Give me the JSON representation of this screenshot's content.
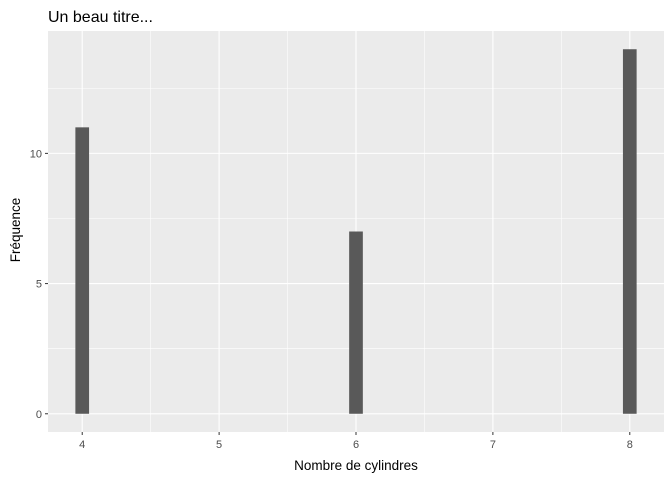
{
  "chart_data": {
    "type": "bar",
    "title": "Un beau titre...",
    "xlabel": "Nombre de cylindres",
    "ylabel": "Fréquence",
    "x": [
      4,
      6,
      8
    ],
    "values": [
      11,
      7,
      14
    ],
    "xlim": [
      3.75,
      8.25
    ],
    "ylim": [
      -0.7,
      14.7
    ],
    "x_ticks": [
      4,
      5,
      6,
      7,
      8
    ],
    "y_ticks": [
      0,
      5,
      10
    ],
    "grid": true,
    "legend": "none",
    "colors": {
      "panel_background": "#ebebeb",
      "grid": "#ffffff",
      "bar": "#595959"
    }
  }
}
